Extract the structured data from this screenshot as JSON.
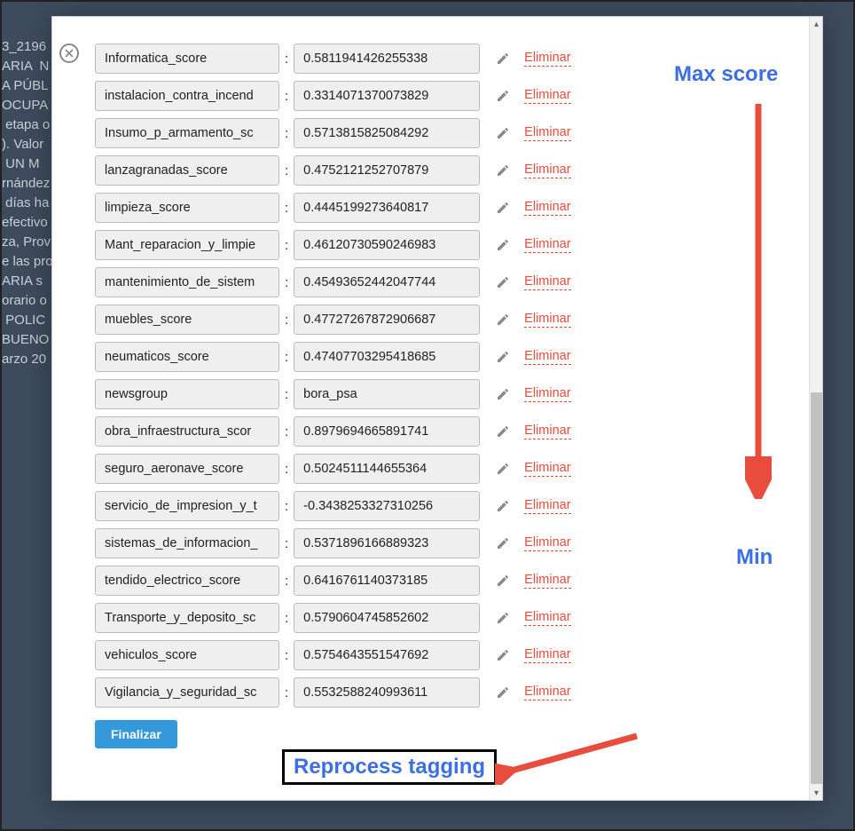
{
  "background_lines": "3_2196\nARIA  N\nA PÚBL\nOCUPA\n etapa o\n). Valor\n UN M\nrnández\n días ha\nefectivo\nza, Prov\ne las pro\nARIA s\norario o\n POLIC\nBUENO\narzo 20",
  "eliminar_label": "Eliminar",
  "separator": ":",
  "rows": [
    {
      "key": "Informatica_score",
      "value": "0.5811941426255338"
    },
    {
      "key": "instalacion_contra_incend",
      "value": "0.3314071370073829"
    },
    {
      "key": "Insumo_p_armamento_sc",
      "value": "0.5713815825084292"
    },
    {
      "key": "lanzagranadas_score",
      "value": "0.4752121252707879"
    },
    {
      "key": "limpieza_score",
      "value": "0.4445199273640817"
    },
    {
      "key": "Mant_reparacion_y_limpie",
      "value": "0.46120730590246983"
    },
    {
      "key": "mantenimiento_de_sistem",
      "value": "0.45493652442047744"
    },
    {
      "key": "muebles_score",
      "value": "0.47727267872906687"
    },
    {
      "key": "neumaticos_score",
      "value": "0.47407703295418685"
    },
    {
      "key": "newsgroup",
      "value": "bora_psa"
    },
    {
      "key": "obra_infraestructura_scor",
      "value": "0.8979694665891741"
    },
    {
      "key": "seguro_aeronave_score",
      "value": "0.5024511144655364"
    },
    {
      "key": "servicio_de_impresion_y_t",
      "value": "-0.3438253327310256"
    },
    {
      "key": "sistemas_de_informacion_",
      "value": "0.5371896166889323"
    },
    {
      "key": "tendido_electrico_score",
      "value": "0.6416761140373185"
    },
    {
      "key": "Transporte_y_deposito_sc",
      "value": "0.5790604745852602"
    },
    {
      "key": "vehiculos_score",
      "value": "0.5754643551547692"
    },
    {
      "key": "Vigilancia_y_seguridad_sc",
      "value": "0.5532588240993611"
    }
  ],
  "footer": {
    "finalizar_label": "Finalizar"
  },
  "scrollbar": {
    "thumb_top_pct": 48,
    "thumb_height_pct": 50
  },
  "annotations": {
    "max_label": "Max score",
    "min_label": "Min",
    "reprocess_label": "Reprocess tagging",
    "arrow_color": "#e74c3c",
    "text_color": "#3b6fe2"
  }
}
